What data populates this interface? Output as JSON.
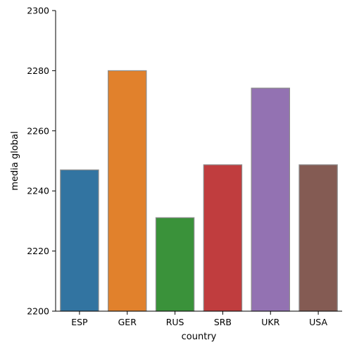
{
  "chart_data": {
    "type": "bar",
    "categories": [
      "ESP",
      "GER",
      "RUS",
      "SRB",
      "UKR",
      "USA"
    ],
    "values": [
      2247.0,
      2280.0,
      2231.1,
      2248.7,
      2274.2,
      2248.7
    ],
    "colors": [
      "#3274a1",
      "#e1812c",
      "#3a923a",
      "#c03d3e",
      "#9372b2",
      "#845b53"
    ],
    "xlabel": "country",
    "ylabel": "media global",
    "ylim": [
      2200,
      2300
    ],
    "yticks": [
      2200,
      2220,
      2240,
      2260,
      2280,
      2300
    ],
    "grid": false,
    "legend": "none"
  }
}
